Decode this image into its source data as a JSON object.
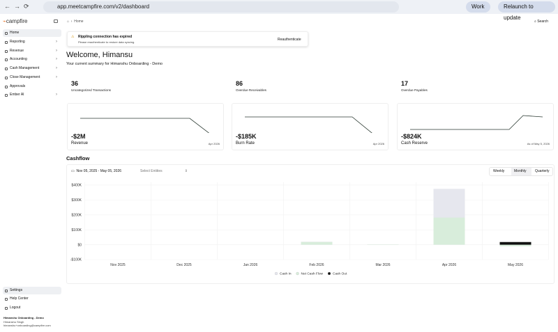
{
  "browser": {
    "url": "app.meetcampfire.com/v2/dashboard",
    "profile": "Work",
    "update_button": "Relaunch to update"
  },
  "sidebar": {
    "logo": "campfire",
    "nav": [
      "Home",
      "Reporting",
      "Revenue",
      "Accounting",
      "Cash Management",
      "Close Management",
      "Approvals",
      "Ember AI"
    ],
    "footer_nav": [
      "Settings",
      "Help Center",
      "Logout"
    ],
    "org": "Himanshu Onboarding - Demo",
    "user": "Himanshu Singh",
    "email": "himanshu+onboarding@campfire.com"
  },
  "header": {
    "breadcrumb": "Home",
    "search": "Search"
  },
  "alert": {
    "title": "Rippling connection has expired",
    "text": "Please reauthenticate to restore data syncing.",
    "button": "Reauthenticate"
  },
  "welcome": {
    "title": "Welcome, Himansu",
    "subtitle": "Your current summary for Himanshu Onboarding - Demo"
  },
  "stats": [
    {
      "value": 36,
      "label": "Uncategorized Transactions"
    },
    {
      "value": 86,
      "label": "Overdue Receivables"
    },
    {
      "value": 17,
      "label": "Overdue Payables"
    }
  ],
  "kpis": [
    {
      "value": "-$2M",
      "label": "Revenue",
      "date": "Apr 2026"
    },
    {
      "value": "-$185K",
      "label": "Burn Rate",
      "date": "Apr 2026"
    },
    {
      "value": "-$824K",
      "label": "Cash Reserve",
      "date": "As of May 5, 2026"
    }
  ],
  "cashflow": {
    "title": "Cashflow",
    "date_range": "Nov 05, 2025 - May 05, 2026",
    "entity_select": "Select Entities",
    "periods": [
      "Weekly",
      "Monthly",
      "Quarterly"
    ]
  },
  "chart_data": {
    "type": "bar",
    "categories": [
      "Nov 2025",
      "Dec 2025",
      "Jan 2026",
      "Feb 2026",
      "Mar 2026",
      "Apr 2026",
      "May 2026"
    ],
    "series": [
      {
        "name": "Cash In",
        "color": "#e6e7ee",
        "values": [
          0,
          0,
          0,
          20000,
          2000,
          375000,
          0
        ]
      },
      {
        "name": "Net Cash Flow",
        "color": "#d8eddb",
        "values": [
          0,
          0,
          0,
          18000,
          2000,
          182000,
          -10000
        ]
      },
      {
        "name": "Cash Out",
        "color": "#111111",
        "values": [
          0,
          0,
          0,
          0,
          0,
          0,
          18000
        ]
      }
    ],
    "ylim": [
      -100000,
      420000
    ],
    "yticks": [
      {
        "value": -100000,
        "label": "-$100K"
      },
      {
        "value": 0,
        "label": "$0"
      },
      {
        "value": 100000,
        "label": "$100K"
      },
      {
        "value": 200000,
        "label": "$200K"
      },
      {
        "value": 300000,
        "label": "$300K"
      },
      {
        "value": 400000,
        "label": "$400K"
      }
    ],
    "grid": true
  }
}
